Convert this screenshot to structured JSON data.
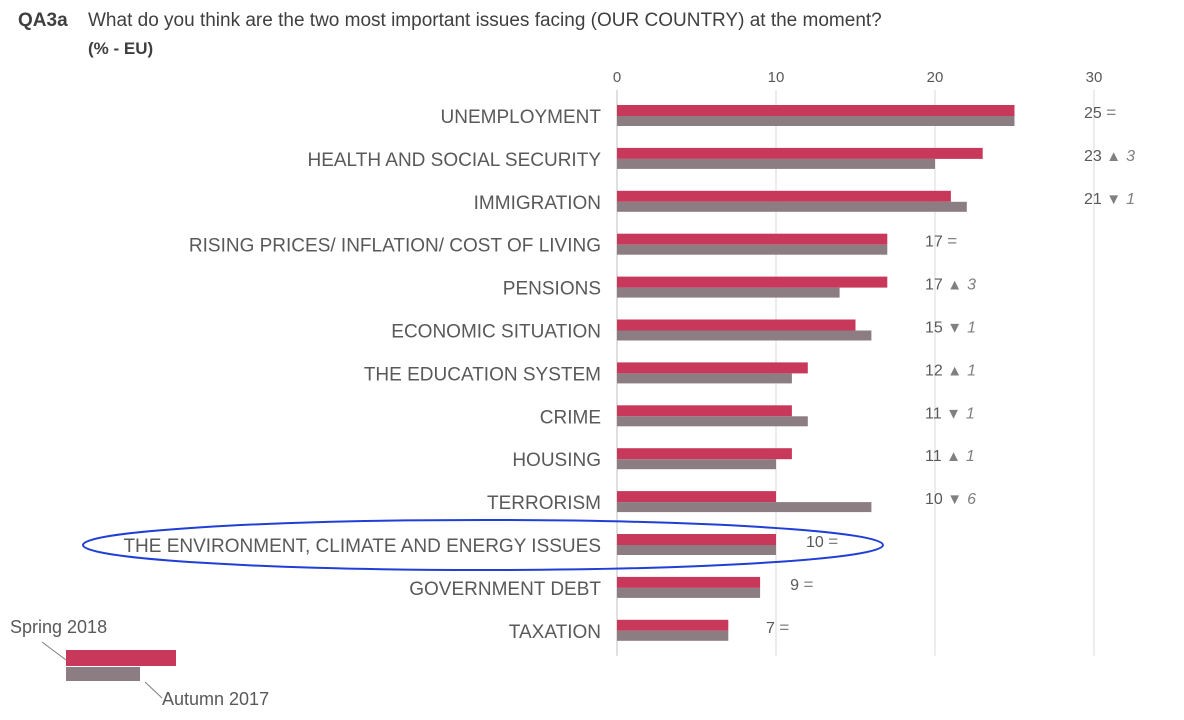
{
  "header": {
    "code": "QA3a",
    "question": "What do you think are the two most important issues facing (OUR COUNTRY) at the moment?",
    "subtitle": "(% - EU)"
  },
  "colors": {
    "spring": "#c8385a",
    "autumn": "#8c7d83",
    "highlight": "#1f3fd6",
    "grid": "#d9d9d9"
  },
  "chart_data": {
    "type": "bar",
    "orientation": "horizontal",
    "xlim": [
      0,
      30
    ],
    "ticks": [
      0,
      10,
      20,
      30
    ],
    "grid": true,
    "categories": [
      "UNEMPLOYMENT",
      "HEALTH AND SOCIAL SECURITY",
      "IMMIGRATION",
      "RISING PRICES/ INFLATION/ COST OF LIVING",
      "PENSIONS",
      "ECONOMIC SITUATION",
      "THE EDUCATION SYSTEM",
      "CRIME",
      "HOUSING",
      "TERRORISM",
      "THE ENVIRONMENT, CLIMATE AND ENERGY ISSUES",
      "GOVERNMENT DEBT",
      "TAXATION"
    ],
    "series": [
      {
        "name": "Spring 2018",
        "values": [
          25,
          23,
          21,
          17,
          17,
          15,
          12,
          11,
          11,
          10,
          10,
          9,
          7
        ]
      },
      {
        "name": "Autumn 2017",
        "values": [
          25,
          20,
          22,
          17,
          14,
          16,
          11,
          12,
          10,
          16,
          10,
          9,
          7
        ]
      }
    ],
    "value_labels": [
      "25",
      "23",
      "21",
      "17",
      "17",
      "15",
      "12",
      "11",
      "11",
      "10",
      "10",
      "9",
      "7"
    ],
    "change_symbols": [
      "=",
      "▲",
      "▼",
      "=",
      "▲",
      "▼",
      "▲",
      "▼",
      "▲",
      "▼",
      "=",
      "=",
      "="
    ],
    "change_values": [
      "",
      "3",
      "1",
      "",
      "3",
      "1",
      "1",
      "1",
      "1",
      "6",
      "",
      "",
      ""
    ],
    "highlighted_category": "THE ENVIRONMENT, CLIMATE AND ENERGY ISSUES",
    "legend": {
      "position": "bottom-left",
      "spring_label": "Spring 2018",
      "autumn_label": "Autumn 2017"
    }
  }
}
